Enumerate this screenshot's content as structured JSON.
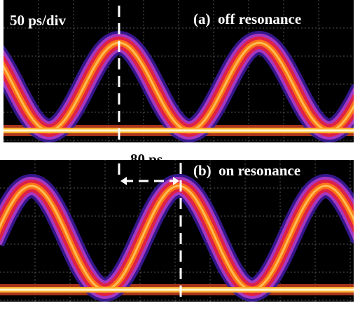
{
  "scale_label": "50 ps/div",
  "panels": [
    {
      "label": "(a)  off resonance"
    },
    {
      "label": "(b)  on resonance"
    }
  ],
  "annotation": "80 ps"
}
